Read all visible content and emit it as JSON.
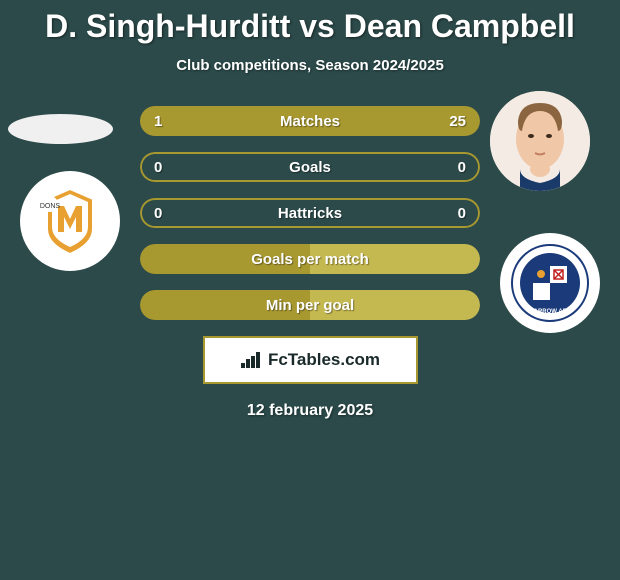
{
  "title": "D. Singh-Hurditt vs Dean Campbell",
  "subtitle": "Club competitions, Season 2024/2025",
  "date": "12 february 2025",
  "brand": "FcTables.com",
  "colors": {
    "background": "#2c4a4a",
    "bar_fill": "#a89830",
    "bar_border": "#a89830",
    "text": "#ffffff",
    "brand_bg": "#ffffff",
    "brand_border": "#a89830",
    "brand_text": "#1a2a2a"
  },
  "stats": [
    {
      "label": "Matches",
      "left_value": "1",
      "right_value": "25",
      "left_pct": 3.8,
      "right_pct": 96.2,
      "left_color": "#a89830",
      "right_color": "#a89830",
      "border_only": false
    },
    {
      "label": "Goals",
      "left_value": "0",
      "right_value": "0",
      "left_pct": 0,
      "right_pct": 0,
      "left_color": "#a89830",
      "right_color": "#a89830",
      "border_only": true
    },
    {
      "label": "Hattricks",
      "left_value": "0",
      "right_value": "0",
      "left_pct": 0,
      "right_pct": 0,
      "left_color": "#a89830",
      "right_color": "#a89830",
      "border_only": true
    },
    {
      "label": "Goals per match",
      "left_value": "",
      "right_value": "",
      "left_pct": 50,
      "right_pct": 50,
      "left_color": "#a89830",
      "right_color": "#c4b850",
      "border_only": false
    },
    {
      "label": "Min per goal",
      "left_value": "",
      "right_value": "",
      "left_pct": 50,
      "right_pct": 50,
      "left_color": "#a89830",
      "right_color": "#c4b850",
      "border_only": false
    }
  ]
}
